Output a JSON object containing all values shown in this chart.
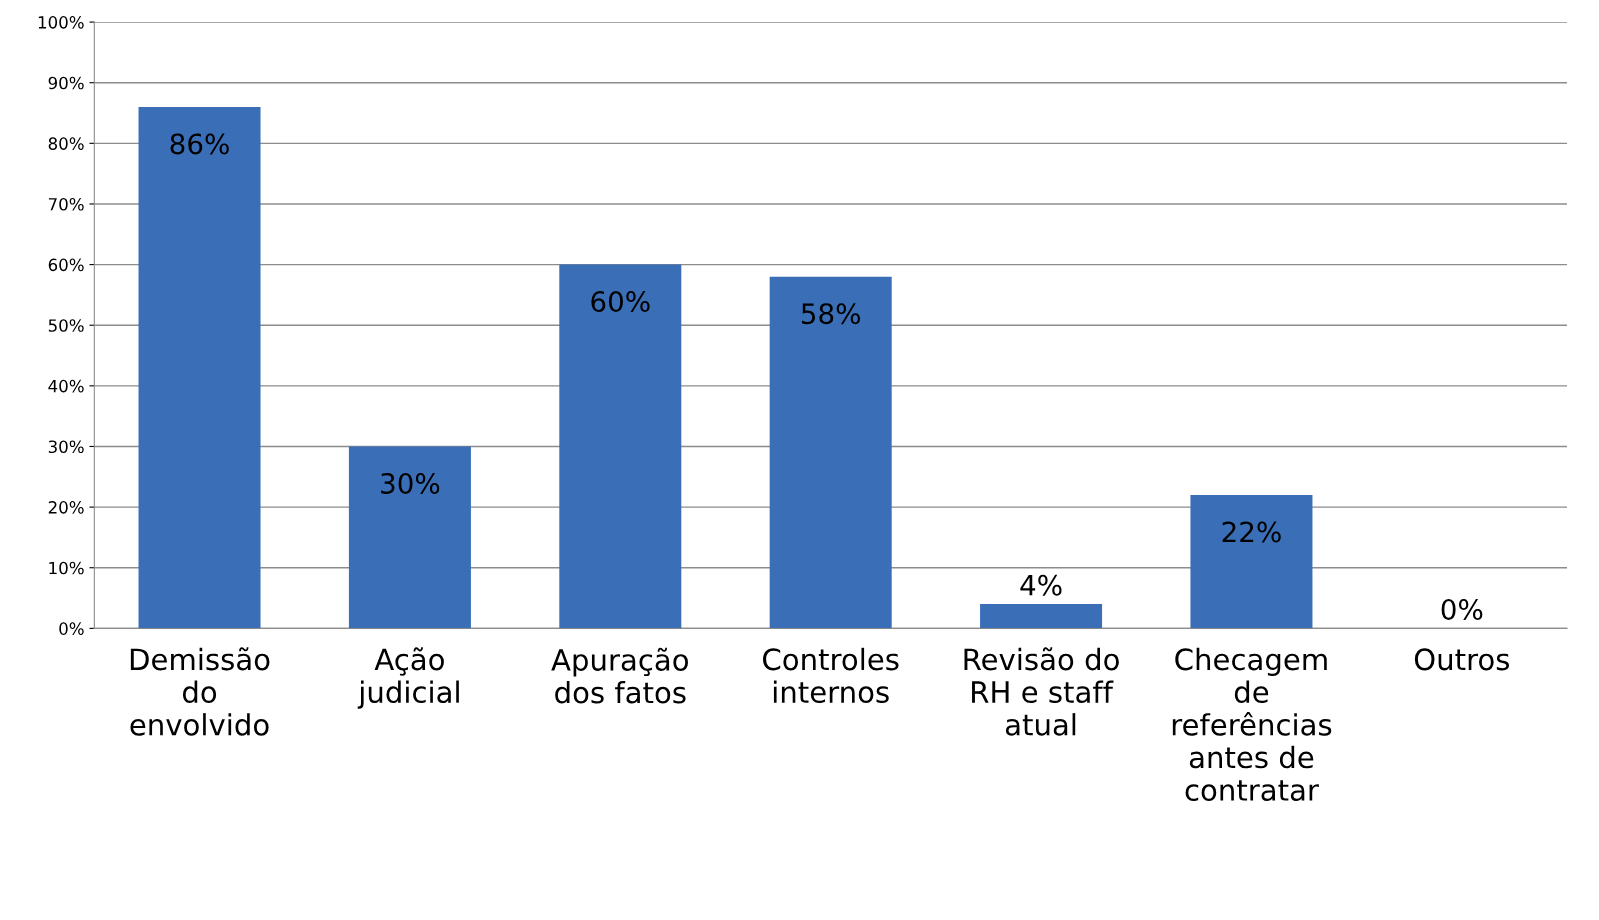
{
  "chart_data": {
    "type": "bar",
    "categories": [
      "Demissão do envolvido",
      "Ação judicial",
      "Apuração dos fatos",
      "Controles internos",
      "Revisão do RH e staff atual",
      "Checagem de referências antes de contratar",
      "Outros"
    ],
    "values": [
      86,
      30,
      60,
      58,
      4,
      22,
      0
    ],
    "value_labels": [
      "86%",
      "30%",
      "60%",
      "58%",
      "4%",
      "22%",
      "0%"
    ],
    "color": "#3a6fb8",
    "ylim": [
      0,
      100
    ],
    "yticks": [
      {
        "value": 0,
        "label": "0%"
      },
      {
        "value": 10,
        "label": "10%"
      },
      {
        "value": 20,
        "label": "20%"
      },
      {
        "value": 30,
        "label": "30%"
      },
      {
        "value": 40,
        "label": "40%"
      },
      {
        "value": 50,
        "label": "50%"
      },
      {
        "value": 60,
        "label": "60%"
      },
      {
        "value": 70,
        "label": "70%"
      },
      {
        "value": 80,
        "label": "80%"
      },
      {
        "value": 90,
        "label": "90%"
      },
      {
        "value": 100,
        "label": "100%"
      }
    ],
    "grid": "y"
  }
}
